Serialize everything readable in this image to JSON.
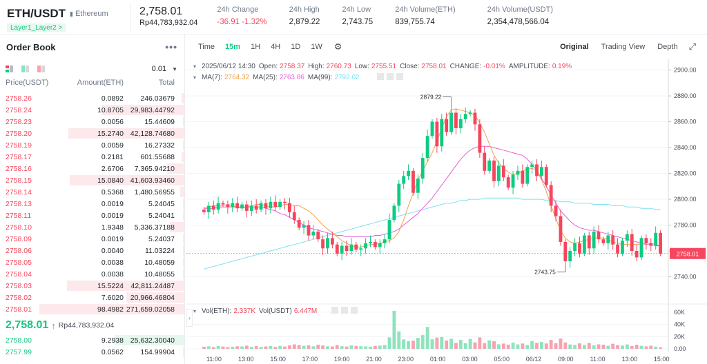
{
  "header": {
    "pair": "ETH/USDT",
    "pair_name": "Ethereum",
    "tag": "Layer1_Layer2 >",
    "last_price": "2,758.01",
    "last_price_local": "Rp44,783,932.04",
    "stats": [
      {
        "label": "24h Change",
        "value": "-36.91 -1.32%",
        "color": "red"
      },
      {
        "label": "24h High",
        "value": "2,879.22"
      },
      {
        "label": "24h Low",
        "value": "2,743.75"
      },
      {
        "label": "24h Volume(ETH)",
        "value": "839,755.74"
      },
      {
        "label": "24h Volume(USDT)",
        "value": "2,354,478,566.04"
      }
    ]
  },
  "orderbook": {
    "title": "Order Book",
    "precision": "0.01",
    "columns": {
      "price": "Price(USDT)",
      "amount": "Amount(ETH)",
      "total": "Total"
    },
    "asks": [
      {
        "price": "2758.26",
        "amount": "0.0892",
        "total": "246.03679",
        "depth": 0.02
      },
      {
        "price": "2758.24",
        "amount": "10.8705",
        "total": "29,983.44792",
        "depth": 0.57
      },
      {
        "price": "2758.23",
        "amount": "0.0056",
        "total": "15.44609",
        "depth": 0.01
      },
      {
        "price": "2758.20",
        "amount": "15.2740",
        "total": "42,128.74680",
        "depth": 0.8
      },
      {
        "price": "2758.19",
        "amount": "0.0059",
        "total": "16.27332",
        "depth": 0.01
      },
      {
        "price": "2758.17",
        "amount": "0.2181",
        "total": "601.55688",
        "depth": 0.02
      },
      {
        "price": "2758.16",
        "amount": "2.6706",
        "total": "7,365.94210",
        "depth": 0.12
      },
      {
        "price": "2758.15",
        "amount": "15.0840",
        "total": "41,603.93460",
        "depth": 0.79
      },
      {
        "price": "2758.14",
        "amount": "0.5368",
        "total": "1,480.56955",
        "depth": 0.03
      },
      {
        "price": "2758.13",
        "amount": "0.0019",
        "total": "5.24045",
        "depth": 0.01
      },
      {
        "price": "2758.11",
        "amount": "0.0019",
        "total": "5.24041",
        "depth": 0.01
      },
      {
        "price": "2758.10",
        "amount": "1.9348",
        "total": "5,336.37188",
        "depth": 0.1
      },
      {
        "price": "2758.09",
        "amount": "0.0019",
        "total": "5.24037",
        "depth": 0.01
      },
      {
        "price": "2758.06",
        "amount": "0.0040",
        "total": "11.03224",
        "depth": 0.01
      },
      {
        "price": "2758.05",
        "amount": "0.0038",
        "total": "10.48059",
        "depth": 0.01
      },
      {
        "price": "2758.04",
        "amount": "0.0038",
        "total": "10.48055",
        "depth": 0.01
      },
      {
        "price": "2758.03",
        "amount": "15.5224",
        "total": "42,811.24487",
        "depth": 0.81
      },
      {
        "price": "2758.02",
        "amount": "7.6020",
        "total": "20,966.46804",
        "depth": 0.4
      },
      {
        "price": "2758.01",
        "amount": "98.4982",
        "total": "271,659.02058",
        "depth": 1.0
      }
    ],
    "mid": {
      "price": "2,758.01",
      "arrow": "↑",
      "local": "Rp44,783,932.04"
    },
    "bids": [
      {
        "price": "2758.00",
        "amount": "9.2938",
        "total": "25,632.30040",
        "depth": 0.48
      },
      {
        "price": "2757.99",
        "amount": "0.0562",
        "total": "154.99904",
        "depth": 0.01
      }
    ]
  },
  "toolbar": {
    "timeframes": [
      "Time",
      "15m",
      "1H",
      "4H",
      "1D",
      "1W"
    ],
    "active": "15m",
    "views": [
      "Original",
      "Trading View",
      "Depth"
    ],
    "active_view": "Original"
  },
  "chart_data": {
    "type": "candlestick",
    "info": {
      "date": "2025/06/12 14:30",
      "open_label": "Open:",
      "open": "2758.37",
      "high_label": "High:",
      "high": "2760.73",
      "low_label": "Low:",
      "low": "2755.51",
      "close_label": "Close:",
      "close": "2758.01",
      "change_label": "CHANGE:",
      "change": "-0.01%",
      "amp_label": "AMPLITUDE:",
      "amp": "0.19%"
    },
    "ma": [
      {
        "label": "MA(7):",
        "value": "2764.32",
        "color": "#f0a04b"
      },
      {
        "label": "MA(25):",
        "value": "2763.86",
        "color": "#e75fd8"
      },
      {
        "label": "MA(99):",
        "value": "2792.02",
        "color": "#7ee0ef"
      }
    ],
    "vol_info": {
      "label1": "Vol(ETH):",
      "v1": "2.337K",
      "label2": "Vol(USDT)",
      "v2": "6.447M"
    },
    "y_ticks": [
      "2900.00",
      "2880.00",
      "2860.00",
      "2840.00",
      "2820.00",
      "2800.00",
      "2780.00",
      "2760.00",
      "2740.00"
    ],
    "ylim": [
      2728,
      2903
    ],
    "vol_ticks": [
      "60K",
      "40K",
      "20K",
      "0.00"
    ],
    "vol_max": 62000,
    "x_ticks": [
      "11:00",
      "13:00",
      "15:00",
      "17:00",
      "19:00",
      "21:00",
      "23:00",
      "01:00",
      "03:00",
      "05:00",
      "06/12",
      "09:00",
      "11:00",
      "13:00",
      "15:00"
    ],
    "high_marker": "2879.22",
    "low_marker": "2743.75",
    "price_tag": "2758.01",
    "ma7_values": [
      2793,
      2794,
      2795,
      2795,
      2795,
      2796,
      2795,
      2794,
      2793,
      2794,
      2795,
      2796,
      2796,
      2795,
      2794,
      2794,
      2795,
      2796,
      2796,
      2795,
      2795,
      2793,
      2791,
      2788,
      2784,
      2780,
      2777,
      2774,
      2771,
      2768,
      2766,
      2764,
      2763,
      2763,
      2764,
      2765,
      2765,
      2766,
      2767,
      2768,
      2770,
      2775,
      2784,
      2795,
      2805,
      2815,
      2822,
      2829,
      2836,
      2845,
      2855,
      2864,
      2869,
      2870,
      2869,
      2868,
      2867,
      2865,
      2859,
      2852,
      2843,
      2834,
      2828,
      2824,
      2821,
      2819,
      2820,
      2822,
      2823,
      2824,
      2822,
      2815,
      2806,
      2795,
      2785,
      2776,
      2770,
      2767,
      2766,
      2767,
      2768,
      2769,
      2770,
      2770,
      2770,
      2769,
      2767,
      2766,
      2765,
      2765,
      2765,
      2765,
      2765,
      2766,
      2766,
      2765,
      2764
    ],
    "ma25_values": [
      2793,
      2793,
      2793,
      2794,
      2794,
      2794,
      2794,
      2794,
      2794,
      2794,
      2794,
      2794,
      2794,
      2793,
      2792,
      2791,
      2789,
      2788,
      2786,
      2784,
      2782,
      2780,
      2778,
      2777,
      2776,
      2775,
      2774,
      2773,
      2772,
      2772,
      2771,
      2771,
      2771,
      2771,
      2771,
      2771,
      2772,
      2772,
      2773,
      2774,
      2775,
      2777,
      2780,
      2783,
      2786,
      2789,
      2793,
      2797,
      2801,
      2806,
      2811,
      2816,
      2821,
      2826,
      2831,
      2835,
      2838,
      2840,
      2841,
      2841,
      2841,
      2840,
      2839,
      2838,
      2837,
      2836,
      2835,
      2834,
      2831,
      2827,
      2822,
      2816,
      2810,
      2803,
      2797,
      2791,
      2787,
      2783,
      2780,
      2778,
      2777,
      2776,
      2776,
      2775,
      2774,
      2773,
      2772,
      2771,
      2770,
      2769,
      2768,
      2767,
      2766,
      2765,
      2765,
      2764,
      2764
    ],
    "ma99_values": [
      2746,
      2747,
      2748,
      2749,
      2750,
      2751,
      2752,
      2753,
      2754,
      2755,
      2756,
      2757,
      2758,
      2759,
      2760,
      2761,
      2762,
      2763,
      2764,
      2765,
      2766,
      2767,
      2768,
      2769,
      2770,
      2771,
      2772,
      2773,
      2774,
      2775,
      2776,
      2777,
      2778,
      2779,
      2780,
      2781,
      2782,
      2783,
      2784,
      2785,
      2786,
      2787,
      2788,
      2789,
      2790,
      2791,
      2792,
      2793,
      2794,
      2795,
      2796,
      2797,
      2797,
      2798,
      2799,
      2799,
      2800,
      2800,
      2800,
      2801,
      2801,
      2801,
      2801,
      2801,
      2801,
      2801,
      2801,
      2800,
      2800,
      2800,
      2800,
      2800,
      2799,
      2799,
      2799,
      2798,
      2798,
      2798,
      2797,
      2797,
      2797,
      2797,
      2796,
      2796,
      2796,
      2796,
      2795,
      2795,
      2795,
      2794,
      2794,
      2794,
      2793,
      2793,
      2793,
      2792,
      2792
    ],
    "closes": [
      2790,
      2795,
      2792,
      2797,
      2796,
      2794,
      2797,
      2793,
      2796,
      2791,
      2795,
      2792,
      2797,
      2793,
      2798,
      2794,
      2798,
      2797,
      2790,
      2784,
      2778,
      2780,
      2772,
      2775,
      2769,
      2762,
      2770,
      2765,
      2758,
      2764,
      2760,
      2765,
      2761,
      2762,
      2766,
      2767,
      2763,
      2766,
      2769,
      2784,
      2795,
      2812,
      2818,
      2822,
      2805,
      2816,
      2832,
      2849,
      2860,
      2841,
      2862,
      2852,
      2867,
      2855,
      2862,
      2866,
      2867,
      2858,
      2836,
      2822,
      2830,
      2814,
      2826,
      2817,
      2809,
      2819,
      2822,
      2812,
      2825,
      2827,
      2818,
      2825,
      2811,
      2795,
      2787,
      2767,
      2752,
      2760,
      2766,
      2758,
      2772,
      2762,
      2775,
      2769,
      2766,
      2772,
      2765,
      2758,
      2768,
      2773,
      2760,
      2755,
      2770,
      2766,
      2764,
      2774,
      2758
    ],
    "volume_values": [
      3500,
      4100,
      2900,
      4600,
      3800,
      2700,
      3500,
      4200,
      3900,
      5100,
      3200,
      4400,
      3300,
      3900,
      4500,
      3100,
      4800,
      3800,
      5600,
      7300,
      6400,
      4900,
      5800,
      4100,
      6800,
      5500,
      4200,
      3900,
      6100,
      4400,
      3800,
      5600,
      4700,
      4200,
      3900,
      3500,
      4800,
      5300,
      6200,
      18800,
      62000,
      28500,
      15400,
      12500,
      13300,
      17900,
      22400,
      35800,
      15600,
      18400,
      19300,
      13600,
      16500,
      9600,
      14500,
      9200,
      16300,
      10500,
      18800,
      9300,
      13800,
      12500,
      7400,
      8600,
      6900,
      10300,
      7200,
      8700,
      6300,
      12700,
      9900,
      11200,
      8800,
      14500,
      9200,
      16800,
      10400,
      7100,
      6500,
      8900,
      6400,
      9600,
      5800,
      7300,
      6800,
      5100,
      8300,
      6100,
      5400,
      7200,
      4600,
      6700,
      4900,
      3900,
      5100,
      3600,
      2400
    ]
  }
}
